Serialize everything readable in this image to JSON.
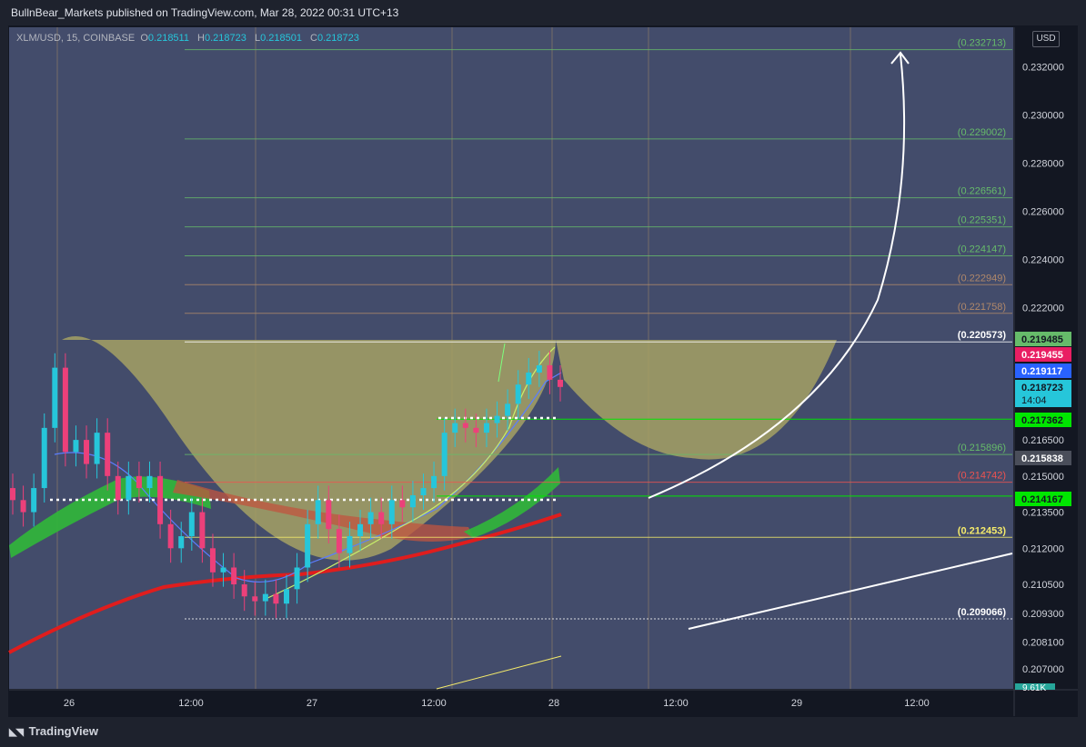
{
  "header": {
    "published": "BullnBear_Markets published on TradingView.com, Mar 28, 2022 00:31 UTC+13"
  },
  "legend": {
    "symbol": "XLM/USD, 15, COINBASE",
    "o_label": "O",
    "o": "0.218511",
    "h_label": "H",
    "h": "0.218723",
    "l_label": "L",
    "l": "0.218501",
    "c_label": "C",
    "c": "0.218723"
  },
  "currency_button": "USD",
  "footer": {
    "brand": "TradingView"
  },
  "colors": {
    "panel": "#434c6b",
    "cup": "#a5a164",
    "fib_green": "#66bb6a",
    "fib_red": "#ef5350",
    "ma_red": "#e01d1d",
    "ribbon_green": "#31b83a",
    "up_candle": "#26c6da",
    "down_candle": "#ec407a",
    "arrow": "#ffffff"
  },
  "chart_data": {
    "type": "candlestick",
    "title": "",
    "symbol": "XLM/USD",
    "timeframe": "15",
    "exchange": "COINBASE",
    "ylim": [
      0.2071,
      0.2337
    ],
    "y_ticks": [
      "0.232000",
      "0.230000",
      "0.228000",
      "0.226000",
      "0.224000",
      "0.222000",
      "0.216500",
      "0.215000",
      "0.213500",
      "0.212000",
      "0.210500",
      "0.209300",
      "0.208100",
      "0.207000"
    ],
    "x_ticks": [
      "26",
      "12:00",
      "27",
      "12:00",
      "28",
      "12:00",
      "29",
      "12:00"
    ],
    "fib_levels": [
      {
        "label": "(0.232713)",
        "value": 0.232713,
        "color": "#66bb6a"
      },
      {
        "label": "(0.229002)",
        "value": 0.229002,
        "color": "#66bb6a"
      },
      {
        "label": "(0.226561)",
        "value": 0.226561,
        "color": "#66bb6a"
      },
      {
        "label": "(0.225351)",
        "value": 0.225351,
        "color": "#66bb6a"
      },
      {
        "label": "(0.224147)",
        "value": 0.224147,
        "color": "#66bb6a"
      },
      {
        "label": "(0.222949)",
        "value": 0.222949,
        "color": "#b0886a"
      },
      {
        "label": "(0.221758)",
        "value": 0.221758,
        "color": "#b0886a"
      },
      {
        "label": "(0.220573)",
        "value": 0.220573,
        "color": "#ffffff"
      },
      {
        "label": "(0.215896)",
        "value": 0.215896,
        "color": "#66bb6a"
      },
      {
        "label": "(0.214742)",
        "value": 0.214742,
        "color": "#ef5350"
      },
      {
        "label": "(0.212453)",
        "value": 0.212453,
        "color": "#f5eb6b"
      },
      {
        "label": "(0.209066)",
        "value": 0.209066,
        "color": "#ffffff"
      }
    ],
    "price_tags": [
      {
        "label": "0.219485",
        "value": 0.219485,
        "bg": "#66bb6a",
        "fg": "#131722"
      },
      {
        "label": "0.219455",
        "value": 0.219455,
        "bg": "#e91e63",
        "fg": "#ffffff"
      },
      {
        "label": "0.219117",
        "value": 0.219117,
        "bg": "#2962ff",
        "fg": "#ffffff"
      },
      {
        "label": "0.218723",
        "value": 0.218723,
        "bg": "#26c6da",
        "fg": "#131722",
        "sub": "14:04"
      },
      {
        "label": "0.217362",
        "value": 0.217362,
        "bg": "#00e600",
        "fg": "#131722"
      },
      {
        "label": "0.215838",
        "value": 0.215838,
        "bg": "#4a4e5a",
        "fg": "#ffffff"
      },
      {
        "label": "0.214167",
        "value": 0.214167,
        "bg": "#00e600",
        "fg": "#131722"
      }
    ],
    "volume_badge": "9.61K",
    "close_series": [
      0.214,
      0.2135,
      0.2145,
      0.217,
      0.2195,
      0.216,
      0.2165,
      0.2155,
      0.2168,
      0.215,
      0.214,
      0.215,
      0.2145,
      0.215,
      0.213,
      0.212,
      0.2125,
      0.2135,
      0.212,
      0.211,
      0.2112,
      0.2105,
      0.21,
      0.2098,
      0.2101,
      0.2097,
      0.2103,
      0.2112,
      0.213,
      0.214,
      0.2128,
      0.2118,
      0.2125,
      0.213,
      0.2135,
      0.213,
      0.214,
      0.2137,
      0.2142,
      0.2145,
      0.215,
      0.2168,
      0.2172,
      0.217,
      0.2168,
      0.2172,
      0.2175,
      0.218,
      0.2188,
      0.2193,
      0.2196,
      0.219,
      0.2187
    ]
  }
}
